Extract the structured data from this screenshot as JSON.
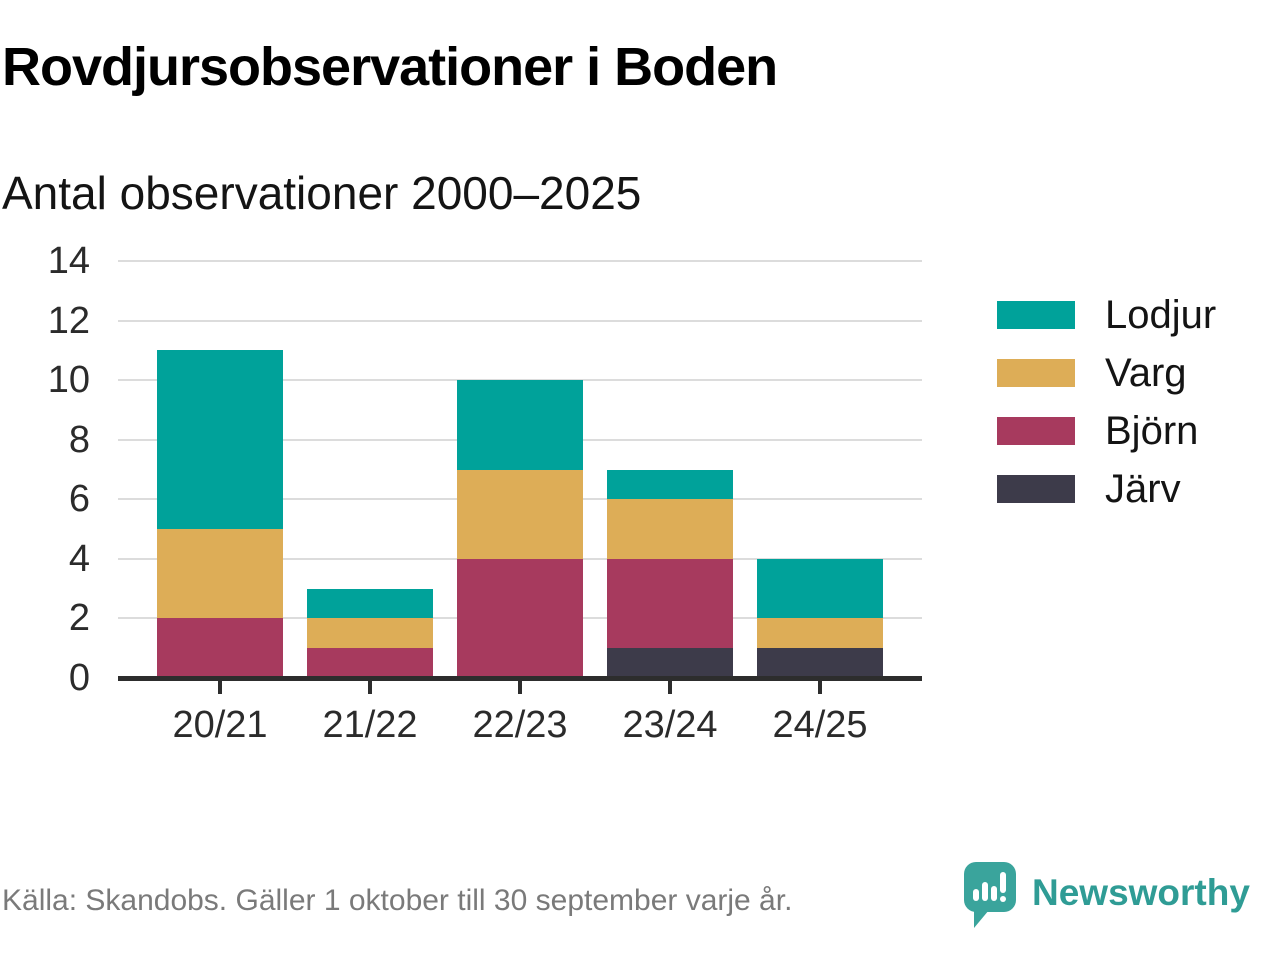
{
  "header": {
    "title": "Rovdjursobservationer i Boden",
    "subtitle": "Antal observationer 2000–2025"
  },
  "chart_data": {
    "type": "bar",
    "stacked": true,
    "title": "Rovdjursobservationer i Boden",
    "subtitle": "Antal observationer 2000–2025",
    "categories": [
      "20/21",
      "21/22",
      "22/23",
      "23/24",
      "24/25"
    ],
    "series": [
      {
        "name": "Järv",
        "color": "#3d3b4a",
        "values": [
          0,
          0,
          0,
          1,
          1
        ]
      },
      {
        "name": "Björn",
        "color": "#a73a5e",
        "values": [
          2,
          1,
          4,
          3,
          0
        ]
      },
      {
        "name": "Varg",
        "color": "#ddad57",
        "values": [
          3,
          1,
          3,
          2,
          1
        ]
      },
      {
        "name": "Lodjur",
        "color": "#00a29a",
        "values": [
          6,
          1,
          3,
          1,
          2
        ]
      }
    ],
    "legend": [
      "Lodjur",
      "Varg",
      "Björn",
      "Järv"
    ],
    "legend_position": "right",
    "y_ticks": [
      0,
      2,
      4,
      6,
      8,
      10,
      12,
      14
    ],
    "ylim": [
      0,
      14
    ],
    "xlabel": "",
    "ylabel": "",
    "grid": true
  },
  "footer": {
    "source": "Källa: Skandobs. Gäller 1 oktober till 30 september varje år.",
    "brand": "Newsworthy",
    "logo_icon": "newsworthy-speech-bubble-bar-chart-icon"
  },
  "colors": {
    "lodjur": "#00a29a",
    "varg": "#ddad57",
    "bjorn": "#a73a5e",
    "jarv": "#3d3b4a",
    "grid": "#dcdcdc",
    "axis": "#2d2d2d",
    "text": "#2b2b2b",
    "source_text": "#7a7a7a",
    "brand_teal": "#2f9c95"
  }
}
